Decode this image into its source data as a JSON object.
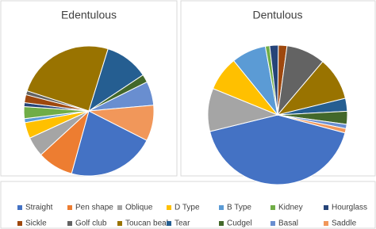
{
  "chart_data": {
    "type": "pie",
    "categories": [
      "Straight",
      "Pen shape",
      "Oblique",
      "D Type",
      "B Type",
      "Kidney",
      "Hourglass",
      "Sickle",
      "Golf club",
      "Toucan beak",
      "Tear",
      "Cudgel",
      "Basal",
      "Saddle"
    ],
    "colors": [
      "#4472c4",
      "#ed7d31",
      "#a5a5a5",
      "#ffc000",
      "#5b9bd5",
      "#70ad47",
      "#264478",
      "#9e480e",
      "#636363",
      "#997300",
      "#255e91",
      "#43682b",
      "#698ed0",
      "#f1975a"
    ],
    "series": [
      {
        "name": "Edentulous",
        "values": [
          22,
          9,
          5,
          4,
          1,
          3,
          1,
          2,
          1,
          25,
          11,
          2,
          6,
          9
        ]
      },
      {
        "name": "Dentulous",
        "values": [
          42,
          0,
          10,
          8,
          8,
          1,
          2,
          2,
          9,
          10,
          3,
          3,
          1,
          1
        ]
      }
    ]
  }
}
